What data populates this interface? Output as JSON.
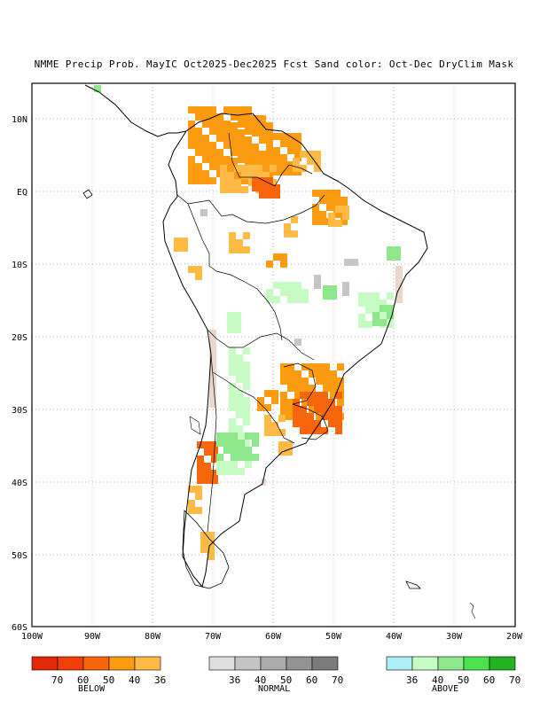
{
  "title": "NMME Precip Prob. MayIC  Oct2025-Dec2025 Fcst  Sand color: Oct-Dec DryClim Mask",
  "lat_labels": [
    "10N",
    "EQ",
    "10S",
    "20S",
    "30S",
    "40S",
    "50S",
    "60S"
  ],
  "lon_labels": [
    "100W",
    "90W",
    "80W",
    "70W",
    "60W",
    "50W",
    "40W",
    "30W",
    "20W"
  ],
  "legend": {
    "below": {
      "caption": "BELOW",
      "colors": [
        "#e22a0a",
        "#f23f0a",
        "#f7650d",
        "#fb9c10",
        "#feba45"
      ],
      "labels": [
        "70",
        "60",
        "50",
        "40",
        "36"
      ]
    },
    "normal": {
      "caption": "NORMAL",
      "colors": [
        "#dedede",
        "#c5c5c5",
        "#ababab",
        "#939393",
        "#7b7b7b"
      ],
      "labels": [
        "36",
        "40",
        "50",
        "60",
        "70"
      ]
    },
    "above": {
      "caption": "ABOVE",
      "colors": [
        "#b0eef6",
        "#c6fbc4",
        "#8ee88b",
        "#4ce14e",
        "#22b222"
      ],
      "labels": [
        "36",
        "40",
        "50",
        "60",
        "70"
      ]
    }
  },
  "palette": {
    "below_main": "#fb9c10",
    "below_light": "#feba45",
    "below_dark": "#f7650d",
    "normal_main": "#c5c5c5",
    "above_main": "#c6fbc4",
    "above_mid": "#8ee88b",
    "dry_mask": "#ead8ce"
  }
}
